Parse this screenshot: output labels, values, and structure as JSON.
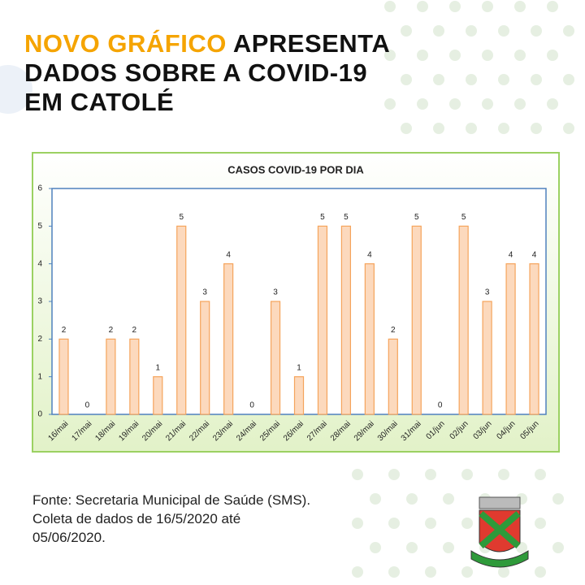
{
  "header": {
    "highlight": "NOVO GRÁFICO",
    "lines": [
      "APRESENTA",
      "DADOS SOBRE A COVID-19",
      "EM CATOLÉ"
    ]
  },
  "chart_data": {
    "type": "bar",
    "title": "CASOS COVID-19 POR DIA",
    "categories": [
      "16/mai",
      "17/mai",
      "18/mai",
      "19/mai",
      "20/mai",
      "21/mai",
      "22/mai",
      "23/mai",
      "24/mai",
      "25/mai",
      "26/mai",
      "27/mai",
      "28/mai",
      "29/mai",
      "30/mai",
      "31/mai",
      "01/jun",
      "02/jun",
      "03/jun",
      "04/jun",
      "05/jun"
    ],
    "values": [
      2,
      0,
      2,
      2,
      1,
      5,
      3,
      4,
      0,
      3,
      1,
      5,
      5,
      4,
      2,
      5,
      0,
      5,
      3,
      4,
      4
    ],
    "color": "#fcd9bd",
    "ylim": [
      0,
      6
    ],
    "yticks": [
      0,
      1,
      2,
      3,
      4,
      5,
      6
    ],
    "grid": false
  },
  "footer": {
    "lines": [
      "Fonte: Secretaria Municipal de Saúde (SMS).",
      "Coleta de dados de 16/5/2020 até",
      "05/06/2020."
    ]
  }
}
